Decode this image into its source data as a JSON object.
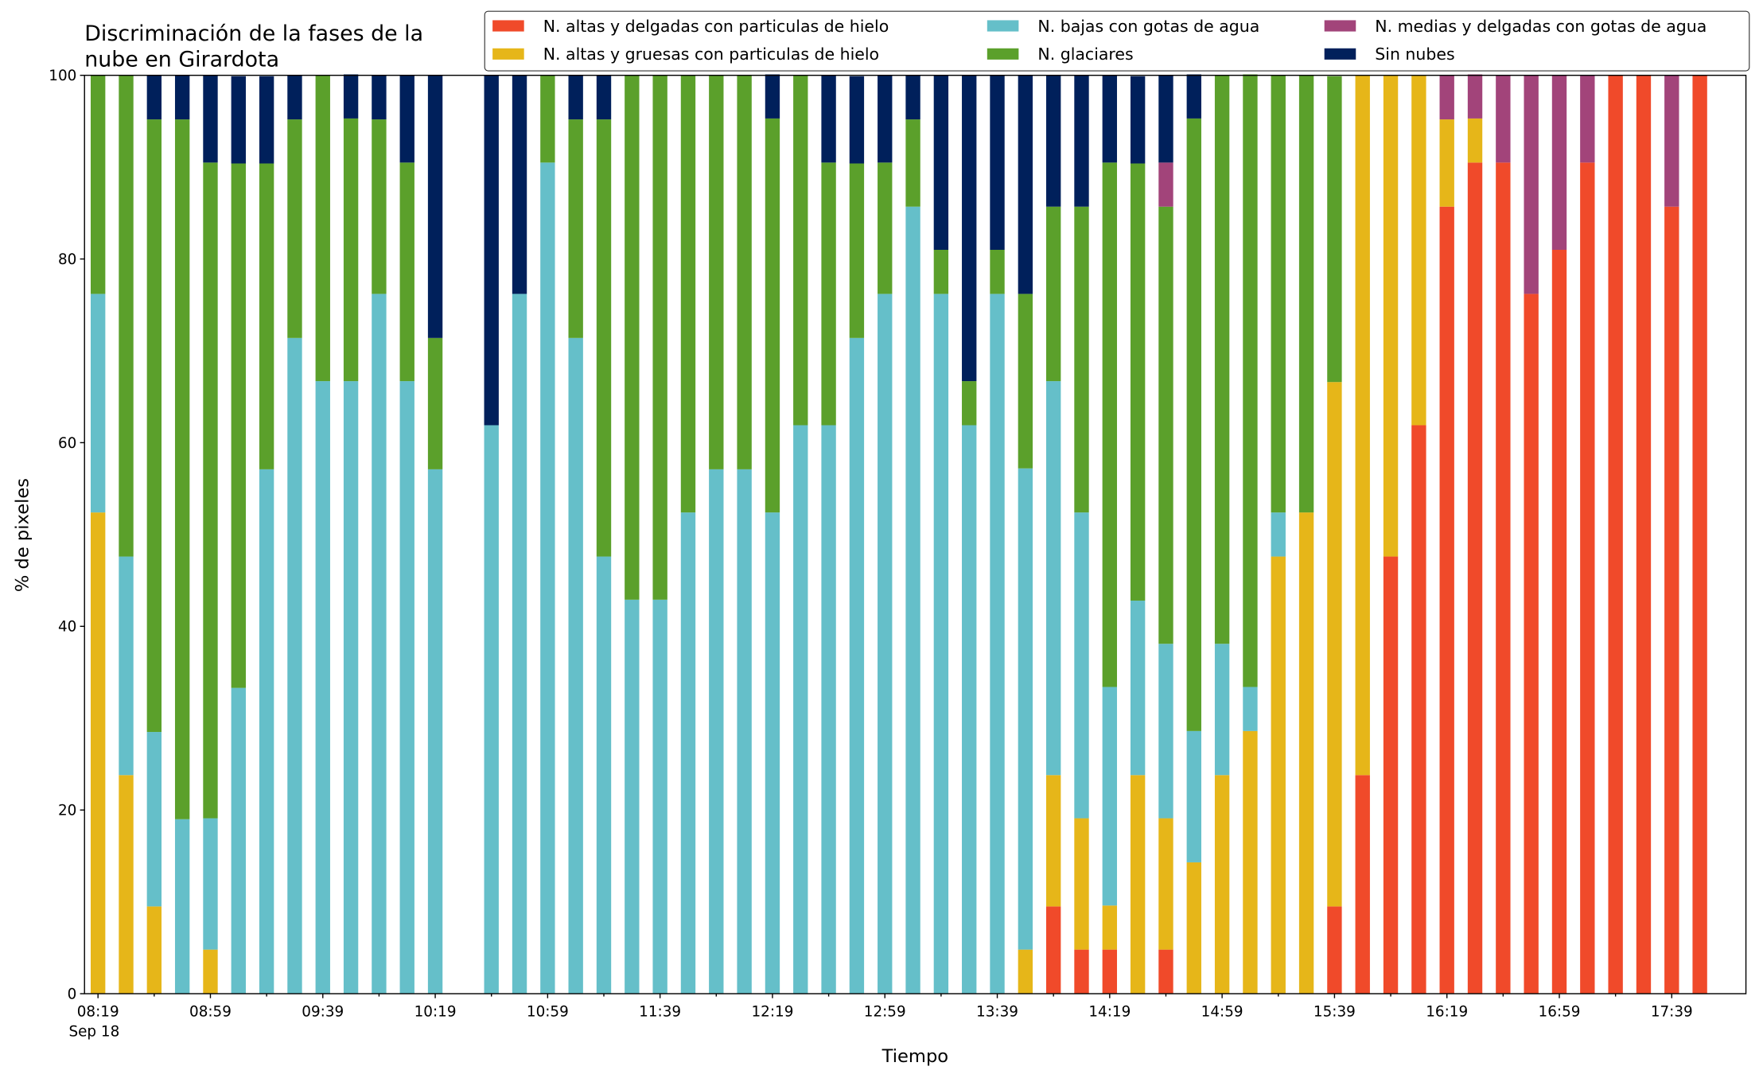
{
  "chart_data": {
    "type": "stacked_bar",
    "title": [
      "Discriminación de la fases de la",
      "nube en Girardota"
    ],
    "xlabel": "Tiempo",
    "ylabel": "% de pixeles",
    "x_date_label": "Sep 18",
    "categories": [
      "08:19",
      null,
      null,
      null,
      "08:59",
      null,
      null,
      null,
      "09:39",
      null,
      null,
      null,
      "10:19",
      null,
      null,
      null,
      "10:59",
      null,
      null,
      null,
      "11:39",
      null,
      null,
      null,
      "12:19",
      null,
      null,
      null,
      "12:59",
      null,
      null,
      null,
      "13:39",
      null,
      null,
      null,
      "14:19",
      null,
      null,
      null,
      "14:59",
      null,
      null,
      null,
      "15:39",
      null,
      null,
      null,
      "16:19",
      null,
      null,
      null,
      "16:59",
      null,
      null,
      null,
      "17:39",
      null
    ],
    "ylim": [
      0,
      100
    ],
    "yticks": [
      0,
      20,
      40,
      60,
      80,
      100
    ],
    "series": [
      {
        "name": "N. altas y delgadas con particulas de hielo",
        "color": "#f04a2a",
        "values": [
          0,
          0,
          0,
          0,
          0,
          0,
          0,
          0,
          0,
          0,
          0,
          0,
          0,
          null,
          0,
          0,
          0,
          0,
          0,
          0,
          0,
          0,
          0,
          0,
          0,
          0,
          0,
          0,
          0,
          0,
          0,
          0,
          0,
          0,
          9.5,
          4.8,
          4.8,
          0,
          4.8,
          0,
          0,
          0,
          0,
          0,
          9.5,
          23.8,
          47.6,
          61.9,
          85.7,
          90.5,
          90.5,
          76.2,
          81.0,
          90.5,
          100,
          100,
          85.7,
          100
        ]
      },
      {
        "name": "N. altas y gruesas con particulas de hielo",
        "color": "#e6b619",
        "values": [
          52.4,
          23.8,
          9.5,
          0,
          4.8,
          0,
          0,
          0,
          0,
          0,
          0,
          0,
          0,
          null,
          0,
          0,
          0,
          0,
          0,
          0,
          0,
          0,
          0,
          0,
          0,
          0,
          0,
          0,
          0,
          0,
          0,
          0,
          0,
          4.8,
          14.3,
          14.3,
          4.8,
          23.8,
          14.3,
          14.3,
          23.8,
          28.6,
          47.6,
          52.4,
          57.1,
          76.2,
          52.4,
          38.1,
          9.5,
          4.8,
          0,
          0,
          0,
          0,
          0,
          0,
          0,
          0
        ]
      },
      {
        "name": "N. bajas con gotas de agua",
        "color": "#65bfc9",
        "values": [
          23.8,
          23.8,
          19.0,
          19.0,
          14.3,
          33.3,
          57.1,
          71.4,
          66.7,
          66.7,
          76.2,
          66.7,
          57.1,
          null,
          61.9,
          76.2,
          90.5,
          71.4,
          47.6,
          42.9,
          42.9,
          52.4,
          57.1,
          57.1,
          52.4,
          61.9,
          61.9,
          71.4,
          76.2,
          85.7,
          76.2,
          61.9,
          76.2,
          52.4,
          42.9,
          33.3,
          23.8,
          19.0,
          19.0,
          14.3,
          14.3,
          4.8,
          4.8,
          0,
          0,
          0,
          0,
          0,
          0,
          0,
          0,
          0,
          0,
          0,
          0,
          0,
          0,
          0
        ]
      },
      {
        "name": "N. glaciares",
        "color": "#5ba02b",
        "values": [
          23.8,
          52.4,
          66.7,
          76.2,
          71.4,
          57.1,
          33.3,
          23.8,
          33.3,
          28.6,
          19.0,
          23.8,
          14.3,
          null,
          0,
          0,
          9.5,
          23.8,
          47.6,
          57.1,
          57.1,
          47.6,
          42.9,
          42.9,
          42.9,
          38.1,
          28.6,
          19.0,
          14.3,
          9.5,
          4.8,
          4.8,
          4.8,
          19.0,
          19.0,
          33.3,
          57.1,
          47.6,
          47.6,
          66.7,
          61.9,
          66.7,
          47.6,
          47.6,
          33.3,
          0,
          0,
          0,
          0,
          0,
          0,
          0,
          0,
          0,
          0,
          0,
          0,
          0
        ]
      },
      {
        "name": "N. medias y delgadas con gotas de agua",
        "color": "#a2447a",
        "values": [
          0,
          0,
          0,
          0,
          0,
          0,
          0,
          0,
          0,
          0,
          0,
          0,
          0,
          null,
          0,
          0,
          0,
          0,
          0,
          0,
          0,
          0,
          0,
          0,
          0,
          0,
          0,
          0,
          0,
          0,
          0,
          0,
          0,
          0,
          0,
          0,
          0,
          0,
          4.8,
          0,
          0,
          0,
          0,
          0,
          0,
          0,
          0,
          0,
          4.8,
          4.8,
          9.5,
          23.8,
          19.0,
          9.5,
          0,
          0,
          14.3,
          0
        ]
      },
      {
        "name": "Sin nubes",
        "color": "#00205b",
        "values": [
          0,
          0,
          4.8,
          4.8,
          9.5,
          9.5,
          9.5,
          4.8,
          0,
          4.8,
          4.8,
          9.5,
          28.6,
          null,
          38.1,
          23.8,
          0,
          4.8,
          4.8,
          0,
          0,
          0,
          0,
          0,
          4.8,
          0,
          9.5,
          9.5,
          9.5,
          4.8,
          19.0,
          33.3,
          19.0,
          23.8,
          14.3,
          14.3,
          9.5,
          9.5,
          9.5,
          4.8,
          0,
          0,
          0,
          0,
          0,
          0,
          0,
          0,
          0,
          0,
          0,
          0,
          0,
          0,
          0,
          0,
          0,
          0
        ]
      }
    ]
  }
}
